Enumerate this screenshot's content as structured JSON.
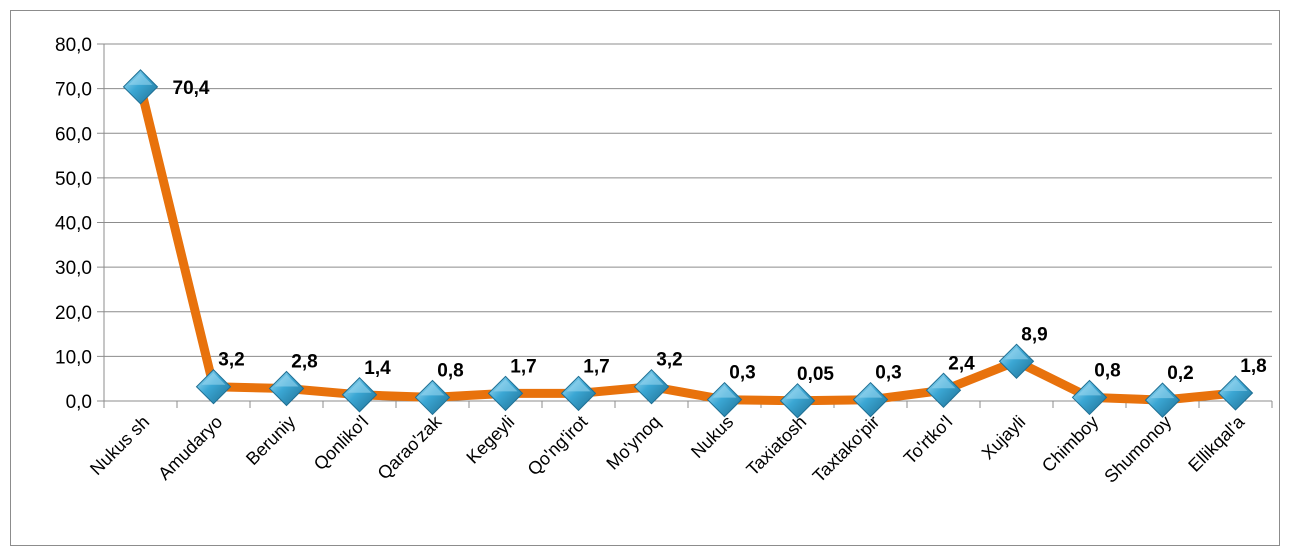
{
  "chart_data": {
    "type": "line",
    "title": "",
    "xlabel": "",
    "ylabel": "",
    "categories": [
      "Nukus sh",
      "Amudaryo",
      "Beruniy",
      "Qonliko'l",
      "Qarao'zak",
      "Kegeyli",
      "Qo'ng'irot",
      "Mo'ynoq",
      "Nukus",
      "Taxiatosh",
      "Taxtako'pir",
      "To'rtko'l",
      "Xujayli",
      "Chimboy",
      "Shumonoy",
      "Ellikqal'a"
    ],
    "series": [
      {
        "values": [
          70.4,
          3.2,
          2.8,
          1.4,
          0.8,
          1.7,
          1.7,
          3.2,
          0.3,
          0.05,
          0.3,
          2.4,
          8.9,
          0.8,
          0.2,
          1.8
        ],
        "data_labels": [
          "70,4",
          "3,2",
          "2,8",
          "1,4",
          "0,8",
          "1,7",
          "1,7",
          "3,2",
          "0,3",
          "0,05",
          "0,3",
          "2,4",
          "8,9",
          "0,8",
          "0,2",
          "1,8"
        ]
      }
    ],
    "ylim": [
      0,
      80
    ],
    "yticks": [
      0,
      10,
      20,
      30,
      40,
      50,
      60,
      70,
      80
    ],
    "ytick_labels": [
      "0,0",
      "10,0",
      "20,0",
      "30,0",
      "40,0",
      "50,0",
      "60,0",
      "70,0",
      "80,0"
    ],
    "grid": true,
    "legend": "none",
    "colors": {
      "line": "#E8720C",
      "marker_fill": "#3BA7D4",
      "marker_light": "#9ED8F0",
      "marker_dark": "#1F6F93",
      "gridline": "#8c8c8c",
      "axis": "#8c8c8c"
    },
    "marker": "diamond-icon"
  }
}
